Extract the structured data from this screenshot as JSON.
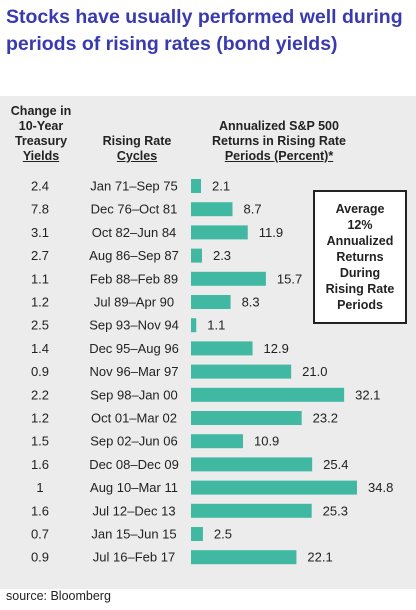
{
  "title": "Stocks have usually performed well during periods of rising rates (bond yields)",
  "headers": {
    "col1": [
      "Change in",
      "10-Year",
      "Treasury",
      "Yields"
    ],
    "col2": [
      "Rising Rate",
      "Cycles"
    ],
    "col3": [
      "Annualized S&P 500",
      "Returns in Rising Rate",
      "Periods (Percent)*"
    ]
  },
  "callout": [
    "Average",
    "12%",
    "Annualized",
    "Returns",
    "During",
    "Rising Rate",
    "Periods"
  ],
  "source": "source: Bloomberg",
  "colors": {
    "bar": "#40b8a2",
    "title": "#3a3ab0",
    "panel": "#ececec"
  },
  "chart_data": {
    "type": "bar",
    "orientation": "horizontal",
    "ylabel": "Annualized S&P 500 Returns in Rising Rate Periods (Percent)*",
    "categories": [
      "Jan 71–Sep 75",
      "Dec 76–Oct 81",
      "Oct 82–Jun 84",
      "Aug 86–Sep 87",
      "Feb 88–Feb 89",
      "Jul 89–Apr 90",
      "Sep 93–Nov 94",
      "Dec 95–Aug 96",
      "Nov 96–Mar 97",
      "Sep 98–Jan 00",
      "Oct 01–Mar 02",
      "Sep 02–Jun 06",
      "Dec 08–Dec 09",
      "Aug 10–Mar 11",
      "Jul 12–Dec 13",
      "Jan 15–Jun 15",
      "Jul 16–Feb 17"
    ],
    "yield_changes": [
      "2.4",
      "7.8",
      "3.1",
      "2.7",
      "1.1",
      "1.2",
      "2.5",
      "1.4",
      "0.9",
      "2.2",
      "1.2",
      "1.5",
      "1.6",
      "1",
      "1.6",
      "0.7",
      "0.9"
    ],
    "values": [
      2.1,
      8.7,
      11.9,
      2.3,
      15.7,
      8.3,
      1.1,
      12.9,
      21.0,
      32.1,
      23.2,
      10.9,
      25.4,
      34.8,
      25.3,
      2.5,
      22.1
    ],
    "value_labels": [
      "2.1",
      "8.7",
      "11.9",
      "2.3",
      "15.7",
      "8.3",
      "1.1",
      "12.9",
      "21.0",
      "32.1",
      "23.2",
      "10.9",
      "25.4",
      "34.8",
      "25.3",
      "2.5",
      "22.1"
    ],
    "xlim": [
      0,
      34.8
    ]
  }
}
